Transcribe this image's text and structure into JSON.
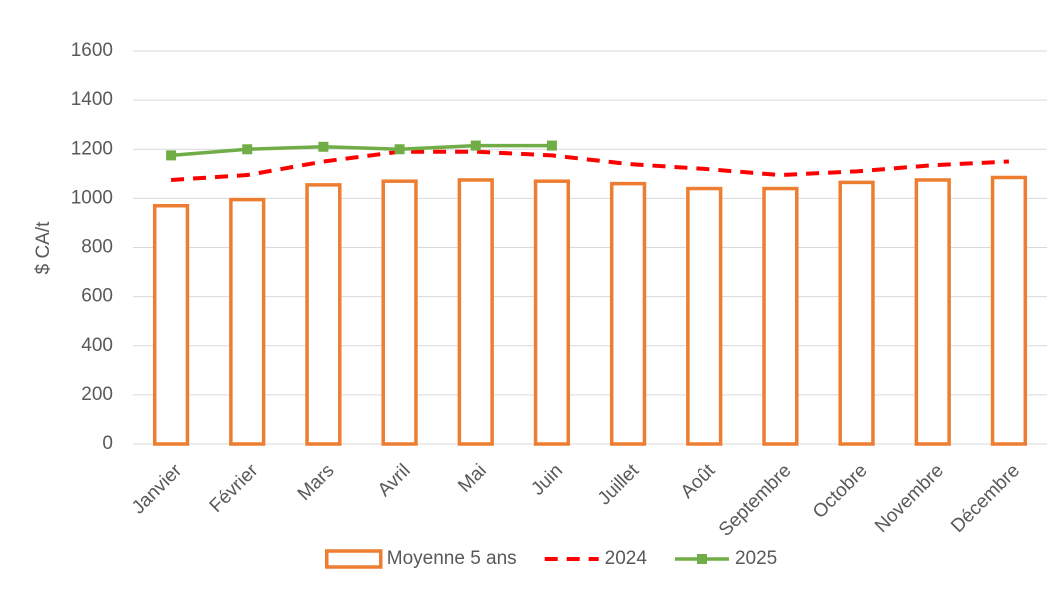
{
  "chart_data": {
    "type": "bar",
    "y_label": "$ CA/t",
    "categories": [
      "Janvier",
      "Février",
      "Mars",
      "Avril",
      "Mai",
      "Juin",
      "Juillet",
      "Août",
      "Septembre",
      "Octobre",
      "Novembre",
      "Décembre"
    ],
    "series": [
      {
        "name": "Moyenne 5 ans",
        "type": "bar",
        "color": "#ED7D31",
        "values": [
          970,
          995,
          1055,
          1070,
          1075,
          1070,
          1060,
          1040,
          1040,
          1065,
          1075,
          1085
        ]
      },
      {
        "name": "2024",
        "type": "line",
        "dash": true,
        "color": "#FF0000",
        "values": [
          1075,
          1095,
          1150,
          1190,
          1190,
          1175,
          1140,
          1120,
          1095,
          1110,
          1135,
          1150
        ]
      },
      {
        "name": "2025",
        "type": "line",
        "marker": "square",
        "color": "#70AD47",
        "values": [
          1175,
          1200,
          1210,
          1200,
          1215,
          1215,
          null,
          null,
          null,
          null,
          null,
          null
        ]
      }
    ],
    "ylim": [
      0,
      1600
    ],
    "yticks": [
      0,
      200,
      400,
      600,
      800,
      1000,
      1200,
      1400,
      1600
    ],
    "grid": true,
    "legend": "bottom"
  }
}
